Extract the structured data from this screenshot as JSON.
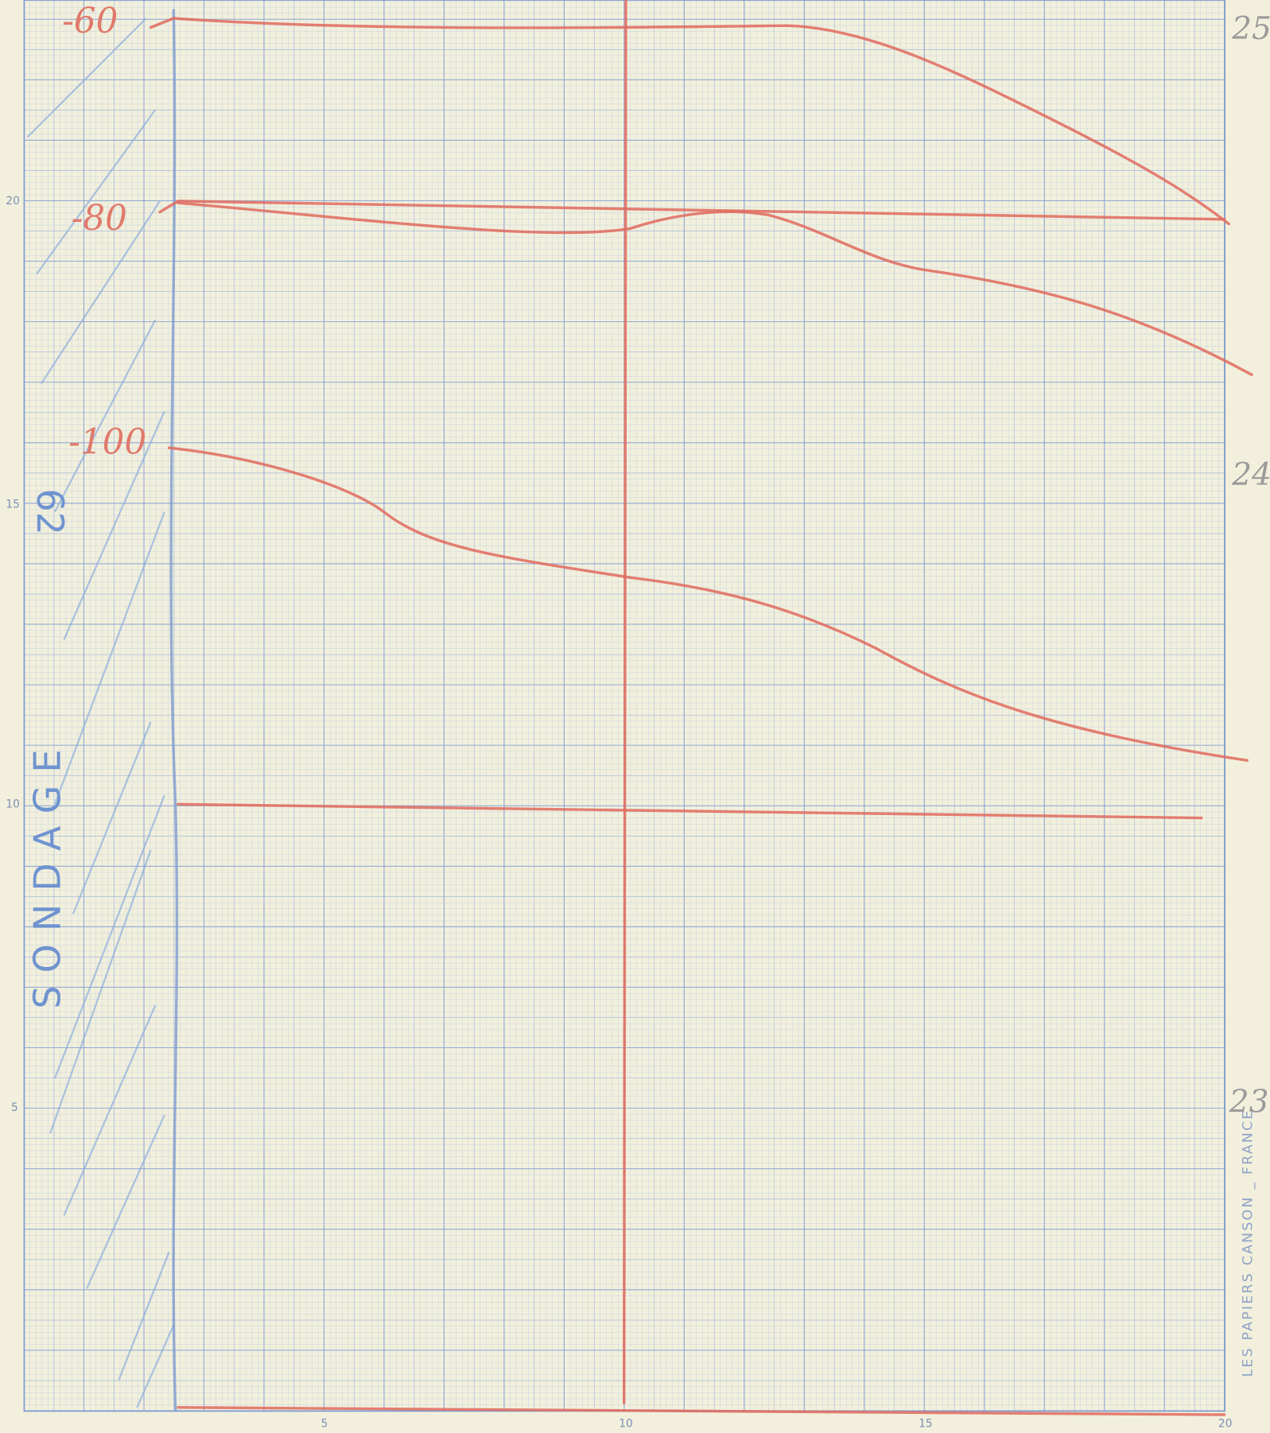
{
  "axis": {
    "x_labels": [
      "5",
      "10",
      "15",
      "20"
    ],
    "y_labels": [
      "20",
      "15",
      "10",
      "5"
    ]
  },
  "annotations": {
    "levels": [
      "-60",
      "-80",
      "-100"
    ],
    "sounding_number": "62",
    "sounding_label": "SONDAGE"
  },
  "page_numbers": [
    "25",
    "24",
    "23"
  ],
  "manufacturer": "LES PAPIERS CANSON _ FRANCE"
}
